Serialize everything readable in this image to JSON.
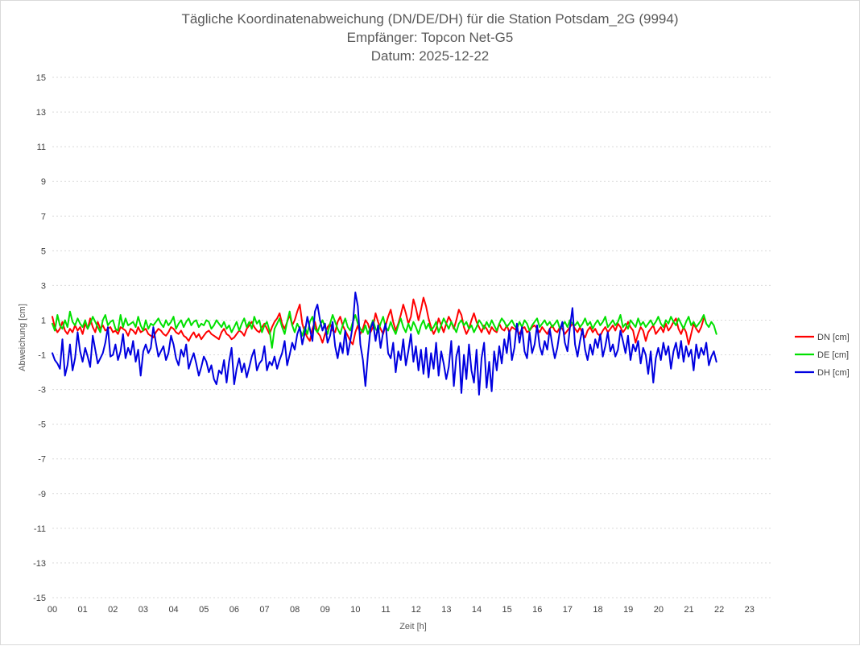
{
  "chart_data": {
    "type": "line",
    "title": [
      "Tägliche Koordinatenabweichung (DN/DE/DH) für die Station Potsdam_2G (9994)",
      "Empfänger: Topcon Net-G5",
      "Datum: 2025-12-22"
    ],
    "xlabel": "Zeit [h]",
    "ylabel": "Abweichung [cm]",
    "xlim": [
      0,
      23.75
    ],
    "ylim": [
      -15,
      15
    ],
    "x_ticks": [
      "00",
      "01",
      "02",
      "03",
      "04",
      "05",
      "06",
      "07",
      "08",
      "09",
      "10",
      "11",
      "12",
      "13",
      "14",
      "15",
      "16",
      "17",
      "18",
      "19",
      "20",
      "21",
      "22",
      "23"
    ],
    "y_ticks": [
      15,
      13,
      11,
      9,
      7,
      5,
      3,
      1,
      -1,
      -3,
      -5,
      -7,
      -9,
      -11,
      -13,
      -15
    ],
    "y_tick_labels": [
      "15",
      "13",
      "11",
      "9",
      "7",
      "5",
      "3",
      "1",
      "-1",
      "-3",
      "-5",
      "-7",
      "-9",
      "-11",
      "-13",
      "-15"
    ],
    "grid": true,
    "legend_position": "right",
    "sample_interval_h": 0.0833,
    "series": [
      {
        "name": "DN [cm]",
        "color": "#ff0000",
        "values": [
          1.2,
          0.6,
          0.3,
          0.5,
          0.9,
          0.4,
          0.2,
          0.5,
          0.3,
          0.7,
          0.4,
          0.6,
          0.2,
          0.8,
          0.5,
          1.1,
          0.6,
          0.3,
          0.9,
          0.5,
          0.7,
          0.4,
          0.5,
          0.6,
          0.3,
          0.4,
          0.2,
          0.6,
          0.5,
          0.4,
          0.1,
          0.5,
          0.4,
          0.2,
          0.6,
          0.3,
          0.4,
          0.5,
          0.2,
          0.1,
          0.0,
          0.3,
          0.5,
          0.4,
          0.2,
          0.1,
          0.3,
          0.6,
          0.5,
          0.3,
          0.2,
          0.4,
          0.1,
          0.0,
          -0.2,
          0.1,
          0.3,
          0.0,
          0.2,
          -0.1,
          0.1,
          0.3,
          0.4,
          0.2,
          0.1,
          0.0,
          -0.1,
          0.3,
          0.5,
          0.2,
          0.1,
          -0.1,
          0.0,
          0.2,
          0.4,
          0.3,
          0.1,
          0.5,
          0.7,
          0.9,
          0.6,
          0.4,
          0.3,
          0.6,
          0.8,
          0.5,
          0.2,
          0.6,
          0.9,
          1.1,
          1.4,
          0.8,
          0.5,
          0.9,
          1.3,
          0.7,
          1.0,
          1.5,
          1.9,
          0.8,
          0.3,
          0.0,
          -0.2,
          0.5,
          0.9,
          0.3,
          0.1,
          -0.3,
          0.2,
          0.6,
          0.8,
          0.4,
          0.3,
          0.9,
          1.2,
          0.7,
          0.4,
          0.1,
          -0.2,
          -0.4,
          0.3,
          0.7,
          0.2,
          0.5,
          1.0,
          0.8,
          0.3,
          0.6,
          1.4,
          0.9,
          0.5,
          0.2,
          0.7,
          1.2,
          1.6,
          0.9,
          0.4,
          0.8,
          1.3,
          1.9,
          1.4,
          0.8,
          1.2,
          2.2,
          1.7,
          1.0,
          1.6,
          2.3,
          1.8,
          1.1,
          0.6,
          0.2,
          0.5,
          1.1,
          0.7,
          0.3,
          0.8,
          1.2,
          0.9,
          0.5,
          1.0,
          1.6,
          1.3,
          0.6,
          0.2,
          0.5,
          1.0,
          1.4,
          0.9,
          0.6,
          0.3,
          0.7,
          0.5,
          0.2,
          0.6,
          0.4,
          0.3,
          0.8,
          0.5,
          0.4,
          0.7,
          0.3,
          0.6,
          0.5,
          0.4,
          0.2,
          0.5,
          0.6,
          0.3,
          0.4,
          0.6,
          0.7,
          0.5,
          0.3,
          0.6,
          0.4,
          0.2,
          0.5,
          0.7,
          0.4,
          0.3,
          0.6,
          0.5,
          0.2,
          0.4,
          0.6,
          0.8,
          0.5,
          0.3,
          0.6,
          0.2,
          0.0,
          0.4,
          0.6,
          0.3,
          0.5,
          0.2,
          0.1,
          0.4,
          0.6,
          0.3,
          0.5,
          0.7,
          0.4,
          0.8,
          0.6,
          0.3,
          0.5,
          0.9,
          0.6,
          0.4,
          -0.3,
          0.2,
          0.6,
          0.4,
          -0.2,
          0.3,
          0.5,
          0.7,
          0.2,
          0.4,
          0.6,
          0.3,
          0.8,
          0.4,
          0.6,
          0.9,
          1.1,
          0.5,
          0.2,
          0.6,
          0.3,
          -0.4,
          0.2,
          0.8,
          0.5,
          0.3,
          0.6,
          1.1
        ]
      },
      {
        "name": "DE [cm]",
        "color": "#00e000",
        "values": [
          0.8,
          0.4,
          1.3,
          0.7,
          0.5,
          1.0,
          0.6,
          1.5,
          0.9,
          0.7,
          1.1,
          0.8,
          0.6,
          1.0,
          0.5,
          0.8,
          1.2,
          0.9,
          0.6,
          0.3,
          1.0,
          1.3,
          0.7,
          0.9,
          1.0,
          0.5,
          0.4,
          1.3,
          0.6,
          1.1,
          0.7,
          0.8,
          0.9,
          0.6,
          1.2,
          0.7,
          0.4,
          1.0,
          0.5,
          0.8,
          0.7,
          0.9,
          1.1,
          0.8,
          0.6,
          1.0,
          0.7,
          0.9,
          1.2,
          0.5,
          0.8,
          1.0,
          0.6,
          0.9,
          1.1,
          0.7,
          0.9,
          1.0,
          0.6,
          0.8,
          0.7,
          1.0,
          0.9,
          0.5,
          0.7,
          1.0,
          0.8,
          0.6,
          0.9,
          0.5,
          0.7,
          0.3,
          0.6,
          0.9,
          0.4,
          0.8,
          1.1,
          0.6,
          0.9,
          0.5,
          1.2,
          0.8,
          1.0,
          0.3,
          0.7,
          0.9,
          0.4,
          -0.6,
          0.5,
          0.8,
          1.1,
          0.6,
          0.2,
          0.9,
          1.5,
          0.7,
          0.3,
          0.8,
          0.5,
          0.1,
          0.6,
          0.2,
          0.9,
          1.2,
          0.5,
          0.3,
          0.7,
          1.0,
          0.6,
          0.2,
          0.8,
          1.3,
          0.9,
          0.5,
          0.2,
          0.7,
          1.1,
          0.6,
          0.4,
          0.9,
          1.3,
          0.8,
          0.5,
          0.3,
          0.7,
          0.2,
          0.6,
          1.0,
          0.5,
          0.3,
          0.8,
          1.2,
          0.6,
          0.4,
          0.9,
          0.5,
          0.2,
          0.7,
          1.1,
          0.6,
          0.3,
          0.8,
          0.4,
          0.9,
          0.6,
          0.2,
          0.7,
          1.0,
          0.5,
          0.8,
          0.4,
          0.6,
          0.9,
          0.3,
          0.7,
          1.1,
          0.8,
          0.5,
          0.9,
          0.6,
          0.3,
          0.8,
          1.0,
          0.7,
          0.9,
          0.5,
          0.7,
          0.3,
          0.6,
          1.0,
          0.8,
          0.5,
          0.9,
          0.6,
          1.0,
          0.7,
          0.4,
          0.8,
          1.1,
          0.9,
          0.6,
          0.8,
          1.0,
          0.7,
          0.5,
          0.9,
          0.6,
          1.0,
          0.8,
          0.4,
          0.7,
          0.9,
          1.1,
          0.6,
          0.8,
          1.0,
          0.7,
          0.9,
          0.6,
          0.8,
          1.0,
          0.5,
          0.7,
          0.9,
          0.6,
          1.0,
          0.8,
          0.7,
          0.9,
          0.6,
          0.8,
          1.1,
          0.7,
          0.9,
          0.5,
          0.8,
          1.0,
          0.7,
          0.9,
          1.2,
          0.6,
          0.8,
          1.0,
          0.7,
          0.9,
          1.3,
          0.6,
          0.8,
          0.5,
          1.0,
          0.8,
          0.6,
          1.1,
          0.7,
          0.9,
          0.6,
          0.8,
          1.0,
          0.7,
          0.9,
          1.2,
          0.8,
          0.6,
          1.0,
          0.8,
          1.2,
          0.9,
          0.7,
          1.1,
          0.8,
          0.5,
          0.9,
          1.2,
          0.7,
          0.9,
          0.6,
          0.8,
          1.0,
          1.3,
          0.8,
          0.6,
          0.9,
          0.7,
          0.2
        ]
      },
      {
        "name": "DH [cm]",
        "color": "#0000e0",
        "values": [
          -0.9,
          -1.3,
          -1.5,
          -1.8,
          -0.1,
          -2.2,
          -1.6,
          -0.4,
          -1.9,
          -1.2,
          0.3,
          -0.8,
          -1.4,
          -0.6,
          -1.1,
          -1.7,
          0.1,
          -0.7,
          -1.5,
          -1.2,
          -0.9,
          -0.3,
          0.6,
          -1.1,
          -1.0,
          -0.4,
          -1.3,
          -0.8,
          0.2,
          -1.2,
          -0.6,
          -1.0,
          -0.2,
          -1.4,
          -0.7,
          -2.2,
          -0.8,
          -0.4,
          -0.9,
          -0.6,
          0.6,
          -0.3,
          -1.1,
          -0.8,
          -0.5,
          -1.3,
          -0.9,
          0.1,
          -0.4,
          -1.2,
          -1.6,
          -0.7,
          -1.1,
          -0.4,
          -1.8,
          -1.3,
          -0.9,
          -1.5,
          -2.2,
          -1.7,
          -1.1,
          -1.4,
          -2.0,
          -1.6,
          -2.4,
          -2.7,
          -1.9,
          -2.1,
          -1.3,
          -2.6,
          -1.4,
          -0.6,
          -2.7,
          -1.8,
          -1.2,
          -2.0,
          -1.5,
          -2.3,
          -1.7,
          -1.1,
          -0.7,
          -1.9,
          -1.5,
          -1.3,
          -0.5,
          -1.9,
          -1.4,
          -1.6,
          -1.1,
          -1.8,
          -1.3,
          -0.9,
          -0.2,
          -1.6,
          -1.0,
          -0.3,
          -0.7,
          0.2,
          0.6,
          -0.4,
          0.3,
          1.2,
          0.5,
          -0.2,
          1.5,
          1.9,
          1.0,
          0.4,
          0.8,
          -0.3,
          0.1,
          0.9,
          -0.5,
          -1.2,
          -0.3,
          -0.9,
          0.4,
          -1.0,
          -0.2,
          0.7,
          2.6,
          1.8,
          -0.4,
          -1.3,
          -2.8,
          -1.0,
          0.5,
          0.9,
          -0.2,
          0.7,
          -0.6,
          0.3,
          0.8,
          -0.9,
          -1.2,
          -0.3,
          -2.0,
          -0.8,
          -1.3,
          -0.1,
          -1.6,
          -0.8,
          0.2,
          -1.4,
          -0.5,
          -1.9,
          -0.7,
          -2.1,
          -0.6,
          -2.3,
          -0.9,
          -1.8,
          -0.3,
          -2.2,
          -0.8,
          -1.5,
          -2.4,
          -1.7,
          -0.2,
          -2.8,
          -1.1,
          -0.5,
          -3.2,
          -1.0,
          -2.4,
          -0.4,
          -1.9,
          -2.6,
          -0.7,
          -3.3,
          -1.2,
          -0.3,
          -2.9,
          -1.4,
          -3.1,
          -0.8,
          -1.9,
          -0.5,
          -1.5,
          -0.1,
          -0.9,
          0.4,
          -1.3,
          -0.6,
          0.8,
          -0.3,
          0.6,
          -0.8,
          -1.2,
          0.3,
          -0.9,
          -0.4,
          0.7,
          -0.5,
          -1.0,
          -0.2,
          -0.7,
          0.5,
          -0.4,
          -1.2,
          -0.6,
          0.4,
          0.9,
          -0.3,
          -0.8,
          0.6,
          1.7,
          -0.4,
          -1.1,
          -0.2,
          0.5,
          -0.7,
          -1.3,
          -0.4,
          -1.0,
          -0.1,
          -0.6,
          0.2,
          -1.1,
          -0.5,
          0.3,
          -0.8,
          -0.4,
          -1.1,
          -0.7,
          0.4,
          -0.2,
          -0.9,
          0.1,
          -1.3,
          -0.4,
          -0.8,
          -0.2,
          -1.5,
          -0.6,
          -1.0,
          -2.1,
          -0.8,
          -2.6,
          -1.2,
          -0.6,
          -1.3,
          -0.3,
          -1.0,
          -0.5,
          -1.8,
          -0.8,
          -0.3,
          -1.2,
          -0.2,
          -1.4,
          -0.5,
          -1.1,
          -0.7,
          -1.9,
          -0.4,
          -1.2,
          -0.6,
          -1.0,
          -0.3,
          -1.6,
          -1.1,
          -0.8,
          -1.4
        ]
      }
    ]
  }
}
